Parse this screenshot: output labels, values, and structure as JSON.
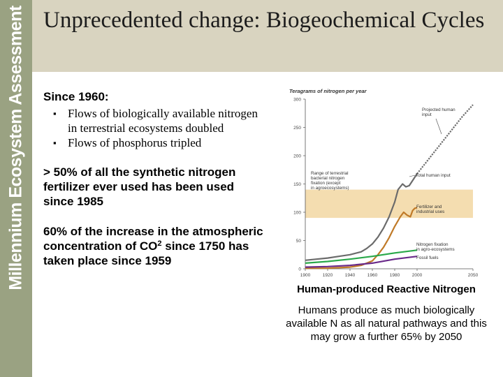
{
  "sidebar": {
    "text": "Millennium Ecosystem Assessment"
  },
  "slide": {
    "title": "Unprecedented change: Biogeochemical Cycles",
    "heading": "Since 1960:",
    "bullets": [
      "Flows of biologically available nitrogen in terrestrial ecosystems doubled",
      "Flows of phosphorus tripled"
    ],
    "para1": "> 50% of all the synthetic nitrogen fertilizer ever used has been used since 1985",
    "para2_a": "60% of the increase in the atmospheric concentration of CO",
    "para2_sup": "2",
    "para2_b": " since 1750 has taken place since 1959"
  },
  "caption": {
    "title": "Human-produced Reactive Nitrogen",
    "body": "Humans produce as much biologically available N as all natural pathways and this may grow a further 65% by 2050"
  },
  "colors": {
    "sidebar": "#9aa282",
    "header": "#d9d4c0",
    "total_human": "#6b6b6b",
    "fertilizer": "#c07a28",
    "agro_fixation": "#2aa84a",
    "fossil_fuels": "#6a2a8a",
    "range_band": "#f4ddb0"
  },
  "chart_data": {
    "type": "line",
    "ylabel": "Teragrams of nitrogen per year",
    "xlim": [
      1900,
      2050
    ],
    "ylim": [
      0,
      300
    ],
    "xticks": [
      "1900",
      "1920",
      "1940",
      "1960",
      "1980",
      "2000",
      "2050"
    ],
    "yticks": [
      "0",
      "50",
      "100",
      "150",
      "200",
      "250",
      "300"
    ],
    "range_band": {
      "label": "Range of terrestrial bacterial nitrogen fixation (except in agroecosystems)",
      "low": 90,
      "high": 140
    },
    "series": [
      {
        "name": "Total human input",
        "x": [
          1900,
          1910,
          1920,
          1930,
          1940,
          1950,
          1955,
          1960,
          1965,
          1970,
          1975,
          1980,
          1983,
          1987,
          1990,
          1993,
          1996,
          2000
        ],
        "y": [
          15,
          17,
          19,
          22,
          25,
          30,
          36,
          44,
          56,
          72,
          92,
          118,
          140,
          150,
          145,
          147,
          156,
          168
        ]
      },
      {
        "name": "Projected human input",
        "dashed": true,
        "x": [
          2000,
          2010,
          2020,
          2030,
          2040,
          2050
        ],
        "y": [
          168,
          193,
          218,
          243,
          268,
          290
        ]
      },
      {
        "name": "Fertilizer and industrial uses",
        "x": [
          1900,
          1920,
          1940,
          1950,
          1955,
          1960,
          1965,
          1970,
          1975,
          1980,
          1985,
          1988,
          1991,
          1994,
          1996,
          1998,
          2000
        ],
        "y": [
          1,
          1,
          3,
          6,
          10,
          14,
          25,
          38,
          55,
          75,
          92,
          100,
          95,
          92,
          103,
          107,
          108
        ]
      },
      {
        "name": "Nitrogen fixation in agro-ecosystems",
        "x": [
          1900,
          1920,
          1940,
          1960,
          1980,
          2000
        ],
        "y": [
          10,
          13,
          17,
          22,
          28,
          33
        ]
      },
      {
        "name": "Fossil fuels",
        "x": [
          1900,
          1920,
          1940,
          1960,
          1980,
          2000
        ],
        "y": [
          3,
          4,
          6,
          10,
          17,
          22
        ]
      }
    ],
    "annotations": {
      "projected": "Projected human input",
      "total": "Total human input",
      "fertilizer": "Fertilizer and industrial uses",
      "agro": "Nitrogen fixation in agro-ecosystems",
      "fossil": "Fossil fuels"
    },
    "grid": false
  }
}
